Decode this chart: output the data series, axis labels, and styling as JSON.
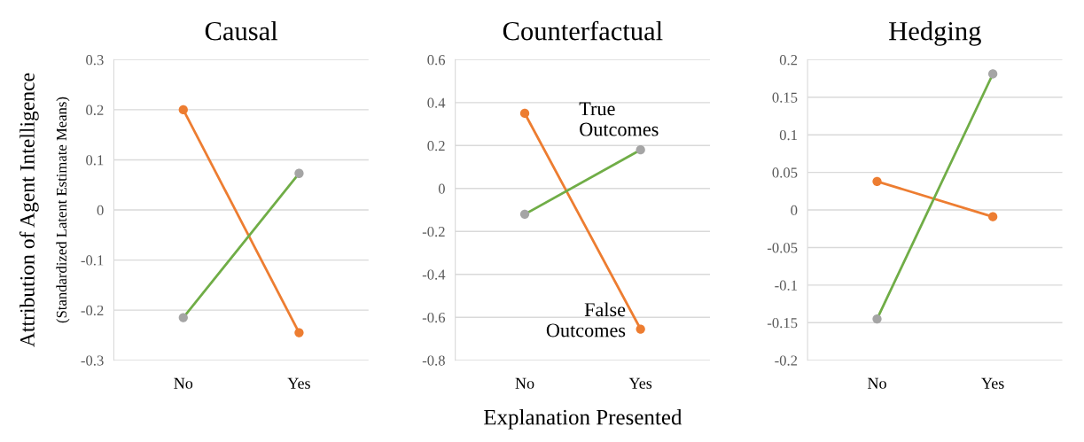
{
  "chart_data": [
    {
      "type": "line",
      "title": "Causal",
      "ylabel": "Attribution of Agent Intelligence",
      "annotations": [
        "(Standardized Latent Estimate Means)"
      ],
      "categories": [
        "No",
        "Yes"
      ],
      "ylim": [
        -0.3,
        0.3
      ],
      "yticks": [
        -0.3,
        -0.2,
        -0.1,
        0,
        0.1,
        0.2,
        0.3
      ],
      "grid": "y",
      "marker": "circle",
      "series": [
        {
          "color": "#ed7d31",
          "values": [
            0.2,
            -0.245
          ]
        },
        {
          "color": "#70ad47",
          "colors": [
            "#a5a5a5",
            "#a5a5a5"
          ],
          "values": [
            -0.215,
            0.073
          ]
        }
      ]
    },
    {
      "type": "line",
      "title": "Counterfactual",
      "xlabel": "Explanation Presented",
      "annotations": [
        {
          "text": "True\nOutcomes",
          "x": "Yes",
          "y": 0.18
        },
        {
          "text": "False\nOutcomes",
          "x": "Yes",
          "y": -0.655
        }
      ],
      "categories": [
        "No",
        "Yes"
      ],
      "ylim": [
        -0.8,
        0.6
      ],
      "yticks": [
        -0.8,
        -0.6,
        -0.4,
        -0.2,
        0,
        0.2,
        0.4,
        0.6
      ],
      "grid": "y",
      "marker": "circle",
      "series": [
        {
          "color": "#ed7d31",
          "values": [
            0.35,
            -0.655
          ]
        },
        {
          "color": "#70ad47",
          "colors": [
            "#a5a5a5",
            "#a5a5a5"
          ],
          "values": [
            -0.12,
            0.18
          ]
        }
      ]
    },
    {
      "type": "line",
      "title": "Hedging",
      "categories": [
        "No",
        "Yes"
      ],
      "ylim": [
        -0.2,
        0.2
      ],
      "yticks": [
        -0.2,
        -0.15,
        -0.1,
        -0.05,
        0,
        0.05,
        0.1,
        0.15,
        0.2
      ],
      "grid": "y",
      "marker": "circle",
      "series": [
        {
          "color": "#ed7d31",
          "values": [
            0.038,
            -0.009
          ]
        },
        {
          "color": "#70ad47",
          "colors": [
            "#a5a5a5",
            "#a5a5a5"
          ],
          "values": [
            -0.145,
            0.181
          ]
        }
      ]
    }
  ]
}
